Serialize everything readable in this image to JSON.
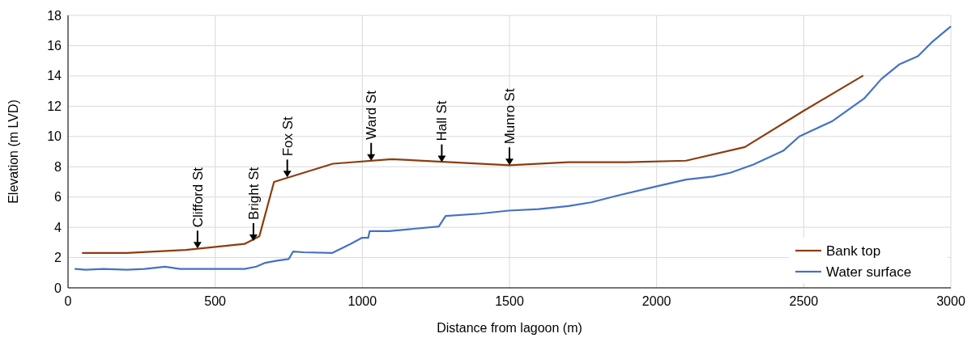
{
  "chart_data": {
    "type": "line",
    "xlabel": "Distance from lagoon (m)",
    "ylabel": "Elevation (m LVD)",
    "xlim": [
      0,
      3000
    ],
    "xticks": [
      0,
      500,
      1000,
      1500,
      2000,
      2500,
      3000
    ],
    "ylim": [
      0,
      18
    ],
    "yticks": [
      0,
      2,
      4,
      6,
      8,
      10,
      12,
      14,
      16,
      18
    ],
    "grid": true,
    "legend": "bottom right",
    "line_style": "solid",
    "marker": "none",
    "series": [
      {
        "name": "Bank top",
        "color": "#8b3d0f",
        "x": [
          50,
          200,
          400,
          600,
          650,
          700,
          900,
          1100,
          1500,
          1700,
          1900,
          2100,
          2300,
          2500,
          2700
        ],
        "values": [
          2.3,
          2.3,
          2.5,
          2.9,
          3.4,
          7.0,
          8.2,
          8.5,
          8.1,
          8.3,
          8.3,
          8.4,
          9.3,
          11.7,
          14.0
        ]
      },
      {
        "name": "Water surface",
        "color": "#4472c4",
        "x": [
          25,
          60,
          120,
          200,
          260,
          330,
          380,
          450,
          550,
          600,
          640,
          670,
          710,
          750,
          765,
          800,
          897,
          960,
          998,
          1020,
          1025,
          1090,
          1260,
          1283,
          1400,
          1497,
          1600,
          1700,
          1778,
          1869,
          1998,
          2100,
          2191,
          2250,
          2329,
          2430,
          2485,
          2596,
          2705,
          2764,
          2824,
          2888,
          2934,
          2998
        ],
        "values": [
          1.25,
          1.2,
          1.25,
          1.2,
          1.25,
          1.4,
          1.25,
          1.25,
          1.25,
          1.25,
          1.4,
          1.65,
          1.8,
          1.9,
          2.4,
          2.35,
          2.3,
          2.9,
          3.3,
          3.3,
          3.75,
          3.75,
          4.05,
          4.75,
          4.9,
          5.1,
          5.2,
          5.4,
          5.65,
          6.1,
          6.7,
          7.15,
          7.35,
          7.6,
          8.15,
          9.05,
          10.0,
          11.0,
          12.5,
          13.8,
          14.75,
          15.3,
          16.2,
          17.25
        ]
      }
    ],
    "annotations": [
      {
        "text": "Clifford St",
        "x": 440,
        "y": 2.6
      },
      {
        "text": "Bright St",
        "x": 630,
        "y": 3.1
      },
      {
        "text": "Fox St",
        "x": 745,
        "y": 7.3
      },
      {
        "text": "Ward St",
        "x": 1030,
        "y": 8.4
      },
      {
        "text": "Hall St",
        "x": 1270,
        "y": 8.3
      },
      {
        "text": "Munro St",
        "x": 1500,
        "y": 8.1
      }
    ]
  }
}
